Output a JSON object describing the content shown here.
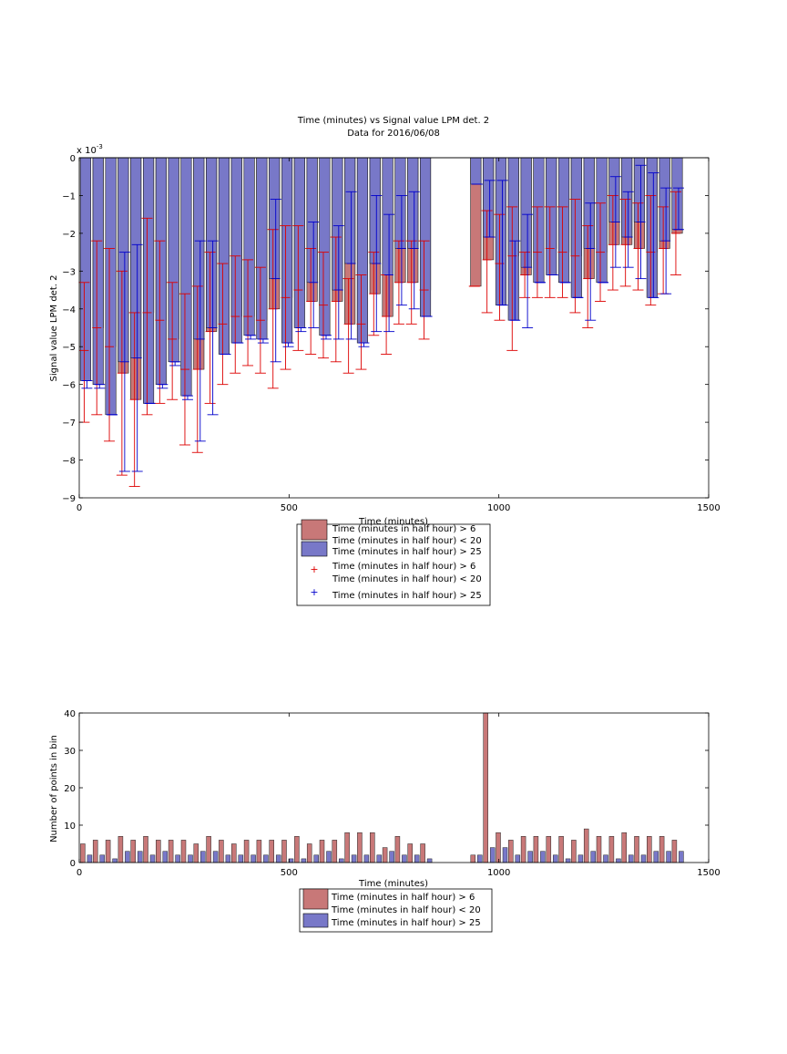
{
  "chart_data": [
    {
      "type": "bar",
      "title": "Time (minutes) vs Signal value LPM det. 2",
      "subtitle": "Data for 2016/06/08",
      "xlabel": "Time (minutes)",
      "ylabel": "Signal value LPM det. 2",
      "y_exponent_label": "x 10",
      "y_exponent_power": "-3",
      "xlim": [
        0,
        1500
      ],
      "ylim": [
        -9,
        0
      ],
      "xticks": [
        "0",
        "500",
        "1000",
        "1500"
      ],
      "yticks": [
        "0",
        "−1",
        "−2",
        "−3",
        "−4",
        "−5",
        "−6",
        "−7",
        "−8",
        "−9"
      ],
      "grid": false,
      "legend_position": "bottom",
      "legend": [
        {
          "kind": "patch",
          "color": "#c87878",
          "lines": [
            "Time (minutes in half hour) > 6",
            "Time (minutes in half hour) < 20"
          ]
        },
        {
          "kind": "patch",
          "color": "#7878c8",
          "lines": [
            "Time (minutes in half hour) > 25"
          ]
        },
        {
          "kind": "marker",
          "color": "#dd0000",
          "lines": [
            "Time (minutes in half hour) > 6",
            "Time (minutes in half hour) < 20"
          ]
        },
        {
          "kind": "marker",
          "color": "#0000cc",
          "lines": [
            "Time (minutes in half hour) > 25"
          ]
        }
      ],
      "series": [
        {
          "color": "#c87878",
          "err_color": "#dd0000",
          "x": [
            15,
            45,
            75,
            105,
            135,
            165,
            195,
            225,
            255,
            285,
            315,
            345,
            375,
            405,
            435,
            465,
            495,
            525,
            555,
            585,
            615,
            645,
            675,
            705,
            735,
            765,
            795,
            825,
            945,
            975,
            1005,
            1035,
            1065,
            1095,
            1125,
            1155,
            1185,
            1215,
            1245,
            1275,
            1305,
            1335,
            1365,
            1395,
            1425
          ],
          "values": [
            -5.1,
            -4.5,
            -5.0,
            -5.7,
            -6.4,
            -4.1,
            -4.3,
            -4.8,
            -5.6,
            -5.6,
            -4.6,
            -4.4,
            -4.2,
            -4.2,
            -4.3,
            -4.0,
            -3.7,
            -3.5,
            -3.8,
            -3.9,
            -3.8,
            -4.4,
            -4.4,
            -3.6,
            -4.2,
            -3.3,
            -3.3,
            -3.5,
            -3.4,
            -2.7,
            -2.8,
            -2.6,
            -3.1,
            -2.5,
            -2.4,
            -2.5,
            -2.6,
            -3.2,
            -2.5,
            -2.3,
            -2.3,
            -2.4,
            -2.5,
            -2.4,
            -2.0
          ],
          "err_low": [
            -7.0,
            -6.8,
            -7.5,
            -8.4,
            -8.7,
            -6.8,
            -6.5,
            -6.4,
            -7.6,
            -7.8,
            -6.5,
            -6.0,
            -5.7,
            -5.5,
            -5.7,
            -6.1,
            -5.6,
            -5.1,
            -5.2,
            -5.3,
            -5.4,
            -5.7,
            -5.6,
            -4.7,
            -5.2,
            -4.4,
            -4.4,
            -4.8,
            -3.4,
            -4.1,
            -4.3,
            -5.1,
            -3.7,
            -3.7,
            -3.7,
            -3.7,
            -4.1,
            -4.5,
            -3.8,
            -3.5,
            -3.4,
            -3.5,
            -3.9,
            -3.6,
            -3.1
          ],
          "err_high": [
            -3.3,
            -2.2,
            -2.4,
            -3.0,
            -4.1,
            -1.6,
            -2.2,
            -3.3,
            -3.6,
            -3.4,
            -2.5,
            -2.8,
            -2.6,
            -2.7,
            -2.9,
            -1.9,
            -1.8,
            -1.8,
            -2.4,
            -2.5,
            -2.1,
            -3.2,
            -3.1,
            -2.5,
            -3.1,
            -2.2,
            -2.2,
            -2.2,
            -3.4,
            -1.4,
            -1.5,
            -1.3,
            -2.5,
            -1.3,
            -1.3,
            -1.3,
            -1.1,
            -1.8,
            -1.2,
            -1.0,
            -1.1,
            -1.2,
            -1.0,
            -1.3,
            -0.9
          ]
        },
        {
          "color": "#7878c8",
          "err_color": "#0000cc",
          "x": [
            15,
            45,
            75,
            105,
            135,
            165,
            195,
            225,
            255,
            285,
            315,
            345,
            375,
            405,
            435,
            465,
            495,
            525,
            555,
            585,
            615,
            645,
            675,
            705,
            735,
            765,
            795,
            825,
            945,
            975,
            1005,
            1035,
            1065,
            1095,
            1125,
            1155,
            1185,
            1215,
            1245,
            1275,
            1305,
            1335,
            1365,
            1395,
            1425
          ],
          "values": [
            -5.9,
            -6.0,
            -6.8,
            -5.4,
            -5.3,
            -6.5,
            -6.0,
            -5.4,
            -6.3,
            -4.8,
            -4.5,
            -5.2,
            -4.9,
            -4.7,
            -4.8,
            -3.2,
            -4.9,
            -4.5,
            -3.3,
            -4.7,
            -3.5,
            -2.8,
            -4.9,
            -2.8,
            -3.1,
            -2.4,
            -2.4,
            -4.2,
            -0.7,
            -2.1,
            -3.9,
            -4.3,
            -2.9,
            -3.3,
            -3.1,
            -3.3,
            -3.7,
            -2.4,
            -3.3,
            -1.7,
            -2.1,
            -1.7,
            -3.7,
            -2.2,
            -1.9
          ],
          "err_low": [
            -6.1,
            -6.1,
            -6.8,
            -8.3,
            -8.3,
            -6.5,
            -6.1,
            -5.5,
            -6.4,
            -7.5,
            -6.8,
            -5.2,
            -4.9,
            -4.8,
            -4.9,
            -5.4,
            -5.0,
            -4.6,
            -4.5,
            -4.8,
            -4.8,
            -4.8,
            -5.0,
            -4.6,
            -4.6,
            -3.9,
            -4.0,
            -4.2,
            -0.7,
            -2.1,
            -3.9,
            -4.3,
            -4.5,
            -3.3,
            -3.1,
            -3.3,
            -3.7,
            -4.3,
            -3.3,
            -2.9,
            -2.9,
            -3.2,
            -3.7,
            -3.6,
            -1.9
          ],
          "err_high": [
            -5.9,
            -6.0,
            -6.8,
            -2.5,
            -2.3,
            -6.5,
            -6.0,
            -5.4,
            -6.3,
            -2.2,
            -2.2,
            -5.2,
            -4.9,
            -4.7,
            -4.8,
            -1.1,
            -4.9,
            -4.5,
            -1.7,
            -4.7,
            -1.8,
            -0.9,
            -4.9,
            -1.0,
            -1.5,
            -1.0,
            -0.9,
            -4.2,
            -0.7,
            -0.6,
            -0.6,
            -2.2,
            -1.5,
            -3.3,
            -3.1,
            -3.3,
            -3.7,
            -1.2,
            -3.3,
            -0.5,
            -0.9,
            -0.2,
            -0.4,
            -0.8,
            -0.8
          ]
        }
      ]
    },
    {
      "type": "bar",
      "title": "",
      "xlabel": "Time (minutes)",
      "ylabel": "Number of points in bin",
      "xlim": [
        0,
        1500
      ],
      "ylim": [
        0,
        40
      ],
      "xticks": [
        "0",
        "500",
        "1000",
        "1500"
      ],
      "yticks": [
        "0",
        "10",
        "20",
        "30",
        "40"
      ],
      "grid": false,
      "legend_position": "bottom",
      "legend": [
        {
          "kind": "patch",
          "color": "#c87878",
          "lines": [
            "Time (minutes in half hour) > 6",
            "Time (minutes in half hour) < 20"
          ]
        },
        {
          "kind": "patch",
          "color": "#7878c8",
          "lines": [
            "Time (minutes in half hour) > 25"
          ]
        }
      ],
      "series": [
        {
          "color": "#c87878",
          "x": [
            15,
            45,
            75,
            105,
            135,
            165,
            195,
            225,
            255,
            285,
            315,
            345,
            375,
            405,
            435,
            465,
            495,
            525,
            555,
            585,
            615,
            645,
            675,
            705,
            735,
            765,
            795,
            825,
            945,
            975,
            1005,
            1035,
            1065,
            1095,
            1125,
            1155,
            1185,
            1215,
            1245,
            1275,
            1305,
            1335,
            1365,
            1395,
            1425
          ],
          "values": [
            5,
            6,
            6,
            7,
            6,
            7,
            6,
            6,
            6,
            5,
            7,
            6,
            5,
            6,
            6,
            6,
            6,
            7,
            5,
            6,
            6,
            8,
            8,
            8,
            4,
            7,
            5,
            5,
            2,
            40,
            8,
            6,
            7,
            7,
            7,
            7,
            6,
            9,
            7,
            7,
            8,
            7,
            7,
            7,
            6
          ]
        },
        {
          "color": "#7878c8",
          "x": [
            15,
            45,
            75,
            105,
            135,
            165,
            195,
            225,
            255,
            285,
            315,
            345,
            375,
            405,
            435,
            465,
            495,
            525,
            555,
            585,
            615,
            645,
            675,
            705,
            735,
            765,
            795,
            825,
            945,
            975,
            1005,
            1035,
            1065,
            1095,
            1125,
            1155,
            1185,
            1215,
            1245,
            1275,
            1305,
            1335,
            1365,
            1395,
            1425
          ],
          "values": [
            2,
            2,
            1,
            3,
            3,
            2,
            3,
            2,
            2,
            3,
            3,
            2,
            2,
            2,
            2,
            2,
            1,
            1,
            2,
            3,
            1,
            2,
            2,
            2,
            3,
            2,
            2,
            1,
            2,
            4,
            4,
            2,
            3,
            3,
            2,
            1,
            2,
            3,
            2,
            1,
            2,
            2,
            3,
            3,
            3
          ]
        }
      ]
    }
  ]
}
